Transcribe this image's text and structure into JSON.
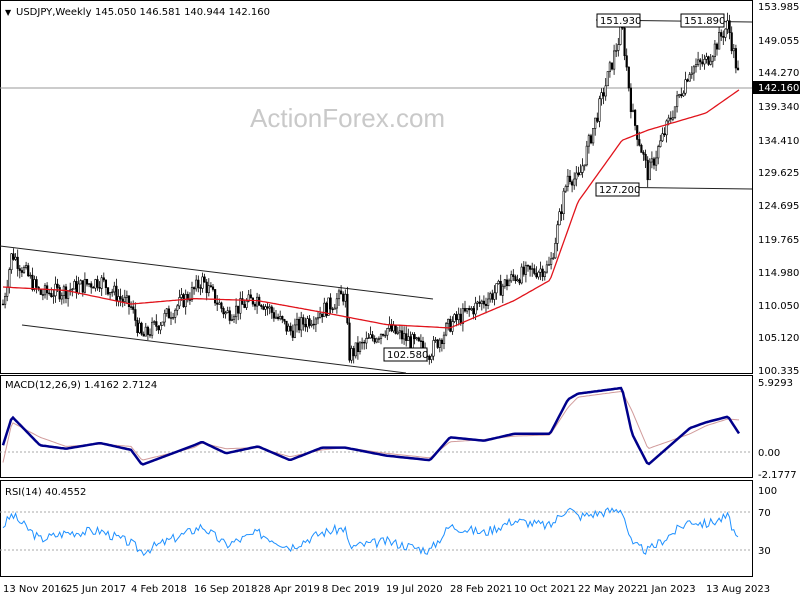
{
  "chart_data": [
    {
      "type": "candlestick",
      "title": "USDJPY,Weekly",
      "ohlc_label": "145.050 146.581 140.944 142.160",
      "watermark": "ActionForex.com",
      "ylim": [
        100.335,
        153.985
      ],
      "y_ticks": [
        "153.985",
        "149.055",
        "144.270",
        "139.340",
        "134.410",
        "129.625",
        "124.695",
        "119.765",
        "114.980",
        "110.050",
        "105.120",
        "100.335"
      ],
      "last_price": "142.160",
      "x_ticks": [
        "13 Nov 2016",
        "25 Jun 2017",
        "4 Feb 2018",
        "16 Sep 2018",
        "28 Apr 2019",
        "8 Dec 2019",
        "19 Jul 2020",
        "28 Feb 2021",
        "10 Oct 2021",
        "22 May 2022",
        "1 Jan 2023",
        "13 Aug 2023"
      ],
      "annotations": [
        "151.930",
        "151.890",
        "127.200",
        "102.580"
      ],
      "price_anchors": [
        {
          "date": "13 Nov 2016",
          "price": 110.0
        },
        {
          "date": "Dec 2016",
          "price": 117.5
        },
        {
          "date": "Mar 2017",
          "price": 111.5
        },
        {
          "date": "25 Jun 2017",
          "price": 112.0
        },
        {
          "date": "Nov 2017",
          "price": 113.5
        },
        {
          "date": "4 Feb 2018",
          "price": 109.5
        },
        {
          "date": "Mar 2018",
          "price": 105.0
        },
        {
          "date": "16 Sep 2018",
          "price": 112.0
        },
        {
          "date": "Oct 2018",
          "price": 113.5
        },
        {
          "date": "Jan 2019",
          "price": 108.5
        },
        {
          "date": "28 Apr 2019",
          "price": 111.0
        },
        {
          "date": "Aug 2019",
          "price": 106.0
        },
        {
          "date": "8 Dec 2019",
          "price": 109.0
        },
        {
          "date": "Mar 2020",
          "price": 111.5
        },
        {
          "date": "Mar 2020 low",
          "price": 102.5
        },
        {
          "date": "19 Jul 2020",
          "price": 106.5
        },
        {
          "date": "Jan 2021",
          "price": 103.0
        },
        {
          "date": "28 Feb 2021",
          "price": 107.0
        },
        {
          "date": "Jun 2021",
          "price": 110.5
        },
        {
          "date": "10 Oct 2021",
          "price": 114.0
        },
        {
          "date": "Feb 2022",
          "price": 115.5
        },
        {
          "date": "Apr 2022",
          "price": 129.0
        },
        {
          "date": "22 May 2022",
          "price": 128.0
        },
        {
          "date": "Oct 2022",
          "price": 150.5
        },
        {
          "date": "Nov 2022",
          "price": 138.0
        },
        {
          "date": "1 Jan 2023",
          "price": 129.0
        },
        {
          "date": "Jun 2023",
          "price": 144.5
        },
        {
          "date": "13 Aug 2023",
          "price": 145.5
        },
        {
          "date": "Oct 2023",
          "price": 151.0
        },
        {
          "date": "Dec 2023",
          "price": 142.2
        }
      ],
      "moving_average": [
        {
          "date": "13 Nov 2016",
          "price": 112.5
        },
        {
          "date": "25 Jun 2017",
          "price": 112.0
        },
        {
          "date": "4 Feb 2018",
          "price": 110.0
        },
        {
          "date": "16 Sep 2018",
          "price": 110.8
        },
        {
          "date": "28 Apr 2019",
          "price": 110.5
        },
        {
          "date": "8 Dec 2019",
          "price": 108.8
        },
        {
          "date": "19 Jul 2020",
          "price": 107.0
        },
        {
          "date": "28 Feb 2021",
          "price": 106.5
        },
        {
          "date": "10 Oct 2021",
          "price": 110.5
        },
        {
          "date": "Feb 2022",
          "price": 113.5
        },
        {
          "date": "22 May 2022",
          "price": 125.0
        },
        {
          "date": "Oct 2022",
          "price": 134.0
        },
        {
          "date": "1 Jan 2023",
          "price": 135.5
        },
        {
          "date": "13 Aug 2023",
          "price": 138.0
        },
        {
          "date": "Dec 2023",
          "price": 141.5
        }
      ]
    },
    {
      "type": "line",
      "title": "MACD(12,26,9) 1.4162 2.7124",
      "ylim": [
        -2.1777,
        5.9293
      ],
      "y_ticks": [
        "5.9293",
        "0.00",
        "-2.1777"
      ],
      "series": [
        {
          "name": "MACD",
          "color": "#00008b",
          "points": [
            {
              "date": "13 Nov 2016",
              "value": 0.5
            },
            {
              "date": "Dec 2016",
              "value": 3.0
            },
            {
              "date": "Mar 2017",
              "value": 0.5
            },
            {
              "date": "25 Jun 2017",
              "value": 0.2
            },
            {
              "date": "Nov 2017",
              "value": 0.7
            },
            {
              "date": "4 Feb 2018",
              "value": 0.1
            },
            {
              "date": "Mar 2018",
              "value": -1.2
            },
            {
              "date": "16 Sep 2018",
              "value": 0.5
            },
            {
              "date": "Oct 2018",
              "value": 0.8
            },
            {
              "date": "Jan 2019",
              "value": -0.2
            },
            {
              "date": "28 Apr 2019",
              "value": 0.4
            },
            {
              "date": "Aug 2019",
              "value": -0.8
            },
            {
              "date": "8 Dec 2019",
              "value": 0.3
            },
            {
              "date": "Mar 2020",
              "value": 0.3
            },
            {
              "date": "19 Jul 2020",
              "value": -0.4
            },
            {
              "date": "Jan 2021",
              "value": -0.8
            },
            {
              "date": "28 Feb 2021",
              "value": 1.2
            },
            {
              "date": "Jun 2021",
              "value": 0.9
            },
            {
              "date": "10 Oct 2021",
              "value": 1.5
            },
            {
              "date": "Feb 2022",
              "value": 1.5
            },
            {
              "date": "Apr 2022",
              "value": 4.5
            },
            {
              "date": "22 May 2022",
              "value": 5.0
            },
            {
              "date": "Oct 2022",
              "value": 5.5
            },
            {
              "date": "Nov 2022",
              "value": 1.5
            },
            {
              "date": "1 Jan 2023",
              "value": -1.2
            },
            {
              "date": "Jun 2023",
              "value": 2.0
            },
            {
              "date": "13 Aug 2023",
              "value": 2.5
            },
            {
              "date": "Oct 2023",
              "value": 3.0
            },
            {
              "date": "Dec 2023",
              "value": 1.4
            }
          ]
        },
        {
          "name": "Signal",
          "color": "#d19b9b",
          "points": [
            {
              "date": "13 Nov 2016",
              "value": -1.0
            },
            {
              "date": "Dec 2016",
              "value": 2.5
            },
            {
              "date": "Mar 2017",
              "value": 1.2
            },
            {
              "date": "25 Jun 2017",
              "value": 0.4
            },
            {
              "date": "Nov 2017",
              "value": 0.6
            },
            {
              "date": "4 Feb 2018",
              "value": 0.4
            },
            {
              "date": "Mar 2018",
              "value": -0.8
            },
            {
              "date": "16 Sep 2018",
              "value": 0.3
            },
            {
              "date": "Oct 2018",
              "value": 0.7
            },
            {
              "date": "Jan 2019",
              "value": 0.2
            },
            {
              "date": "28 Apr 2019",
              "value": 0.3
            },
            {
              "date": "Aug 2019",
              "value": -0.5
            },
            {
              "date": "8 Dec 2019",
              "value": 0.1
            },
            {
              "date": "Mar 2020",
              "value": 0.3
            },
            {
              "date": "19 Jul 2020",
              "value": -0.2
            },
            {
              "date": "Jan 2021",
              "value": -0.6
            },
            {
              "date": "28 Feb 2021",
              "value": 0.8
            },
            {
              "date": "Jun 2021",
              "value": 1.0
            },
            {
              "date": "10 Oct 2021",
              "value": 1.3
            },
            {
              "date": "Feb 2022",
              "value": 1.4
            },
            {
              "date": "Apr 2022",
              "value": 3.8
            },
            {
              "date": "22 May 2022",
              "value": 4.7
            },
            {
              "date": "Oct 2022",
              "value": 5.2
            },
            {
              "date": "Nov 2022",
              "value": 3.5
            },
            {
              "date": "1 Jan 2023",
              "value": 0.2
            },
            {
              "date": "Jun 2023",
              "value": 1.5
            },
            {
              "date": "13 Aug 2023",
              "value": 2.2
            },
            {
              "date": "Oct 2023",
              "value": 2.8
            },
            {
              "date": "Dec 2023",
              "value": 2.7
            }
          ]
        }
      ]
    },
    {
      "type": "line",
      "title": "RSI(14) 40.4552",
      "ylim": [
        0,
        100
      ],
      "y_ticks": [
        "100",
        "70",
        "30",
        "0"
      ],
      "levels": [
        70,
        30
      ],
      "series": [
        {
          "name": "RSI",
          "color": "#1e90ff",
          "points": [
            {
              "date": "13 Nov 2016",
              "value": 62
            },
            {
              "date": "Dec 2016",
              "value": 74
            },
            {
              "date": "Mar 2017",
              "value": 48
            },
            {
              "date": "25 Jun 2017",
              "value": 55
            },
            {
              "date": "Nov 2017",
              "value": 57
            },
            {
              "date": "4 Feb 2018",
              "value": 44
            },
            {
              "date": "Mar 2018",
              "value": 35
            },
            {
              "date": "16 Sep 2018",
              "value": 58
            },
            {
              "date": "Oct 2018",
              "value": 62
            },
            {
              "date": "Jan 2019",
              "value": 42
            },
            {
              "date": "28 Apr 2019",
              "value": 55
            },
            {
              "date": "Aug 2019",
              "value": 40
            },
            {
              "date": "8 Dec 2019",
              "value": 55
            },
            {
              "date": "Mar 2020",
              "value": 60
            },
            {
              "date": "Mar 2020 low",
              "value": 40
            },
            {
              "date": "19 Jul 2020",
              "value": 46
            },
            {
              "date": "Jan 2021",
              "value": 36
            },
            {
              "date": "28 Feb 2021",
              "value": 62
            },
            {
              "date": "Jun 2021",
              "value": 55
            },
            {
              "date": "10 Oct 2021",
              "value": 68
            },
            {
              "date": "Feb 2022",
              "value": 62
            },
            {
              "date": "Apr 2022",
              "value": 82
            },
            {
              "date": "22 May 2022",
              "value": 72
            },
            {
              "date": "Oct 2022",
              "value": 80
            },
            {
              "date": "Nov 2022",
              "value": 42
            },
            {
              "date": "1 Jan 2023",
              "value": 36
            },
            {
              "date": "Jun 2023",
              "value": 68
            },
            {
              "date": "13 Aug 2023",
              "value": 64
            },
            {
              "date": "Oct 2023",
              "value": 72
            },
            {
              "date": "Dec 2023",
              "value": 40.5
            }
          ]
        }
      ]
    }
  ]
}
